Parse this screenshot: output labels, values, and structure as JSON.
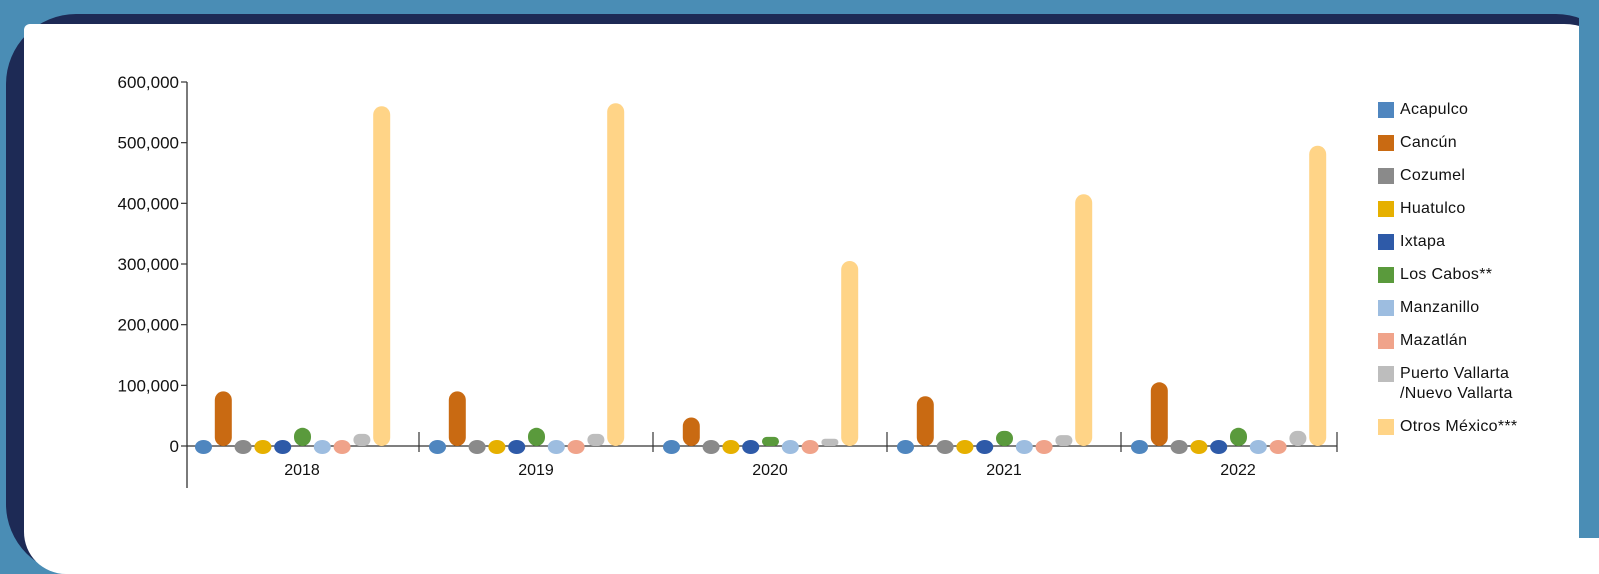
{
  "chart_data": {
    "type": "bar",
    "title": "",
    "xlabel": "",
    "ylabel": "",
    "ylim": [
      0,
      600000
    ],
    "y_ticks": [
      "600,000",
      "500,000",
      "400,000",
      "300,000",
      "200,000",
      "100,000",
      "0"
    ],
    "categories": [
      "2018",
      "2019",
      "2020",
      "2021",
      "2022"
    ],
    "legend_position": "right",
    "series": [
      {
        "name": "Acapulco",
        "color": "#4f86bf",
        "values": [
          0,
          0,
          0,
          0,
          0
        ]
      },
      {
        "name": "Cancún",
        "color": "#c96a12",
        "values": [
          90000,
          90000,
          47000,
          82000,
          105000
        ]
      },
      {
        "name": "Cozumel",
        "color": "#8a8a8a",
        "values": [
          0,
          0,
          0,
          0,
          0
        ]
      },
      {
        "name": "Huatulco",
        "color": "#e6b000",
        "values": [
          0,
          0,
          0,
          0,
          0
        ]
      },
      {
        "name": "Ixtapa",
        "color": "#2e5aa8",
        "values": [
          0,
          0,
          0,
          0,
          0
        ]
      },
      {
        "name": "Los Cabos**",
        "color": "#5a9a3c",
        "values": [
          30000,
          30000,
          15000,
          25000,
          30000
        ]
      },
      {
        "name": "Manzanillo",
        "color": "#9dbde0",
        "values": [
          0,
          0,
          0,
          0,
          0
        ]
      },
      {
        "name": "Mazatlán",
        "color": "#f0a38a",
        "values": [
          0,
          0,
          0,
          0,
          0
        ]
      },
      {
        "name": "Puerto Vallarta /Nuevo Vallarta",
        "label_lines": [
          "Puerto Vallarta",
          "/Nuevo Vallarta"
        ],
        "color": "#bdbdbd",
        "values": [
          20000,
          20000,
          12000,
          18000,
          25000
        ]
      },
      {
        "name": "Otros México***",
        "color": "#ffd487",
        "values": [
          560000,
          565000,
          305000,
          415000,
          495000
        ]
      }
    ]
  }
}
